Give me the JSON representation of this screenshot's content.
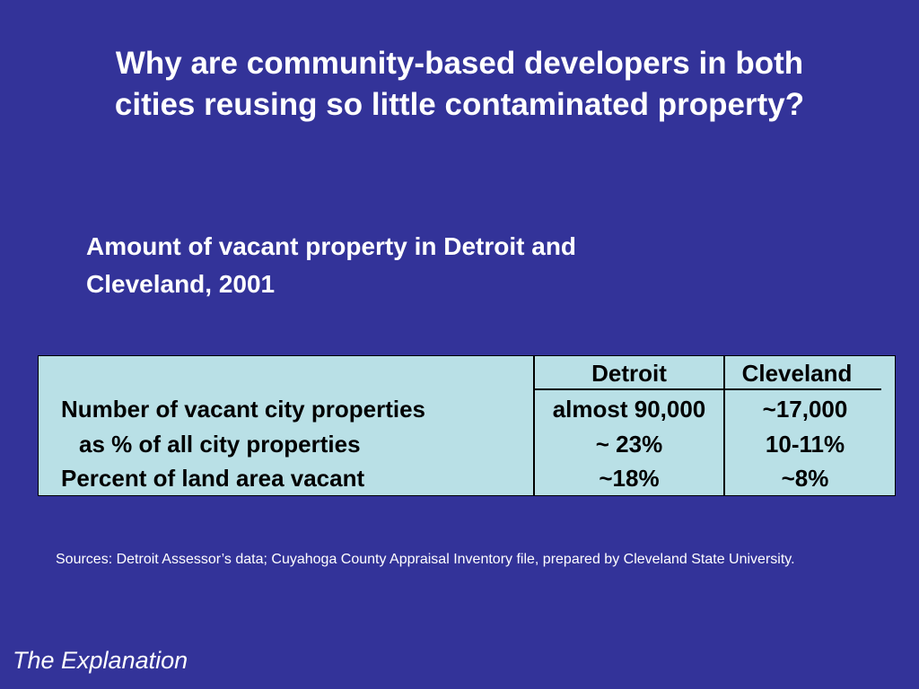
{
  "title": {
    "line1": "Why are community-based developers in both",
    "line2": "cities reusing so little contaminated property?"
  },
  "subtitle": {
    "line1": "Amount of vacant property in Detroit and",
    "line2": "Cleveland, 2001"
  },
  "table": {
    "columns": [
      "Detroit",
      "Cleveland"
    ],
    "rows": [
      {
        "label": "Number of vacant city properties",
        "detroit": "almost 90,000",
        "cleveland": "~17,000"
      },
      {
        "label": "as % of all city properties",
        "detroit": "~ 23%",
        "cleveland": "10-11%"
      },
      {
        "label": "Percent of land area vacant",
        "detroit": "~18%",
        "cleveland": "~8%"
      }
    ]
  },
  "sources": "Sources: Detroit Assessor’s data; Cuyahoga County Appraisal Inventory file, prepared by Cleveland State University.",
  "footer": "The Explanation",
  "colors": {
    "background": "#333399",
    "table_background": "#b9e0e6",
    "text": "#ffffff",
    "table_text": "#000000"
  }
}
